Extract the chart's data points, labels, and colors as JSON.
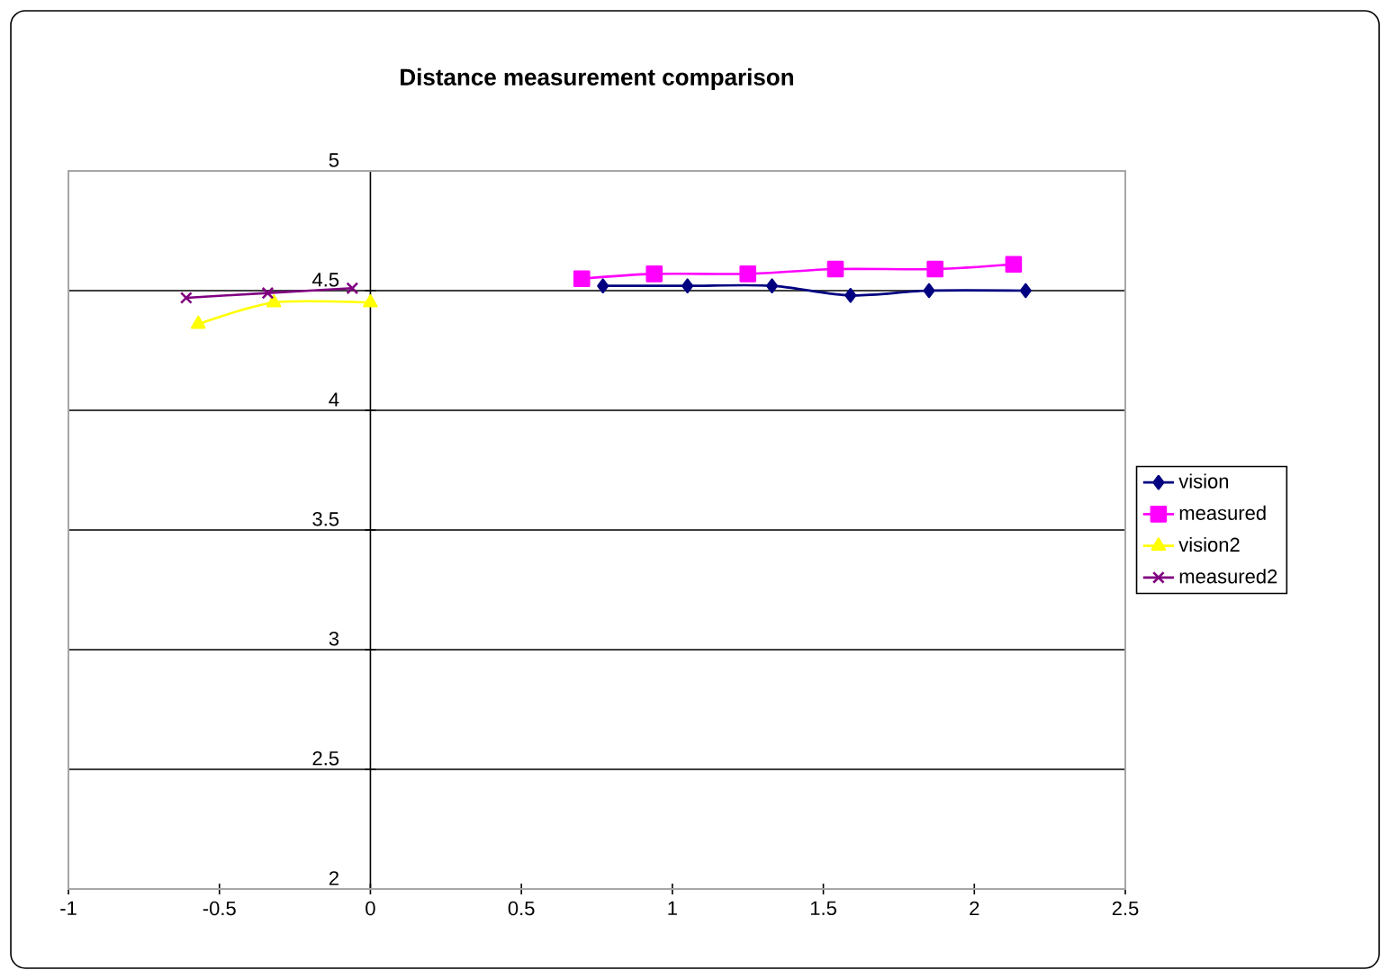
{
  "chart_data": {
    "type": "line",
    "title": "Distance measurement comparison",
    "xlim": [
      -1,
      2.5
    ],
    "xticks": [
      -1,
      -0.5,
      0,
      0.5,
      1,
      1.5,
      2,
      2.5
    ],
    "ylim": [
      2,
      5
    ],
    "yticks": [
      2,
      2.5,
      3,
      3.5,
      4,
      4.5,
      5
    ],
    "grid": "y",
    "legend": "right",
    "line_style": "solid",
    "series": [
      {
        "name": "vision",
        "color": "#000080",
        "marker": "diamond",
        "x": [
          0.77,
          1.05,
          1.33,
          1.59,
          1.85,
          2.17
        ],
        "values": [
          4.52,
          4.52,
          4.52,
          4.48,
          4.5,
          4.5
        ]
      },
      {
        "name": "measured",
        "color": "#ff00ff",
        "marker": "square",
        "x": [
          0.7,
          0.94,
          1.25,
          1.54,
          1.87,
          2.13
        ],
        "values": [
          4.55,
          4.57,
          4.57,
          4.59,
          4.59,
          4.61
        ]
      },
      {
        "name": "vision2",
        "color": "#ffff00",
        "marker": "triangle",
        "x": [
          -0.57,
          -0.32,
          0.0
        ],
        "values": [
          4.36,
          4.45,
          4.45
        ]
      },
      {
        "name": "measured2",
        "color": "#800080",
        "marker": "cross",
        "x": [
          -0.61,
          -0.34,
          -0.06
        ],
        "values": [
          4.47,
          4.49,
          4.51
        ]
      }
    ]
  }
}
